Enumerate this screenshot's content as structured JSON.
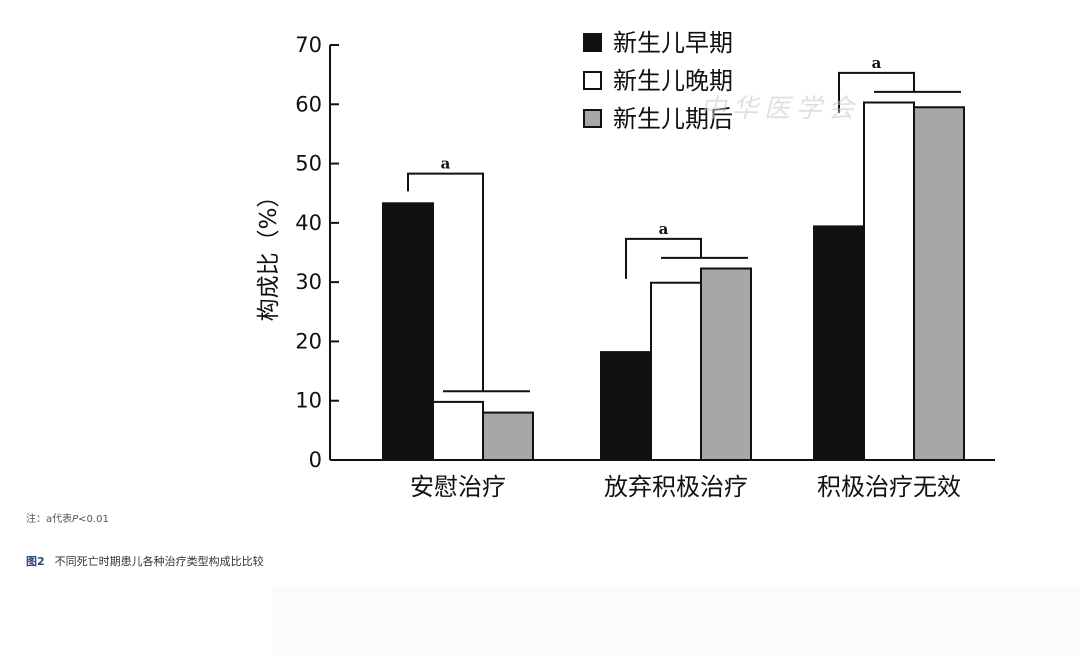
{
  "chart_data": {
    "type": "bar",
    "categories": [
      "安慰治疗",
      "放弃积极治疗",
      "积极治疗无效"
    ],
    "series": [
      {
        "name": "新生儿早期",
        "values": [
          43.3,
          18.2,
          39.4
        ],
        "color": "#111111"
      },
      {
        "name": "新生儿晚期",
        "values": [
          9.8,
          29.9,
          60.3
        ],
        "color": "#ffffff"
      },
      {
        "name": "新生儿期后",
        "values": [
          8.0,
          32.3,
          59.5
        ],
        "color": "#a7a7a7"
      }
    ],
    "ylabel": "构成比（%）",
    "xlabel": "",
    "ylim": [
      0,
      70
    ],
    "yticks": [
      0,
      10,
      20,
      30,
      40,
      50,
      60,
      70
    ],
    "legend_position": "top",
    "annotations": [
      "a",
      "a",
      "a"
    ]
  },
  "note": {
    "prefix": "注：a代表",
    "p": "P",
    "suffix": "<0.01"
  },
  "caption": {
    "number": "图2",
    "text": "不同死亡时期患儿各种治疗类型构成比比较"
  },
  "watermark": "中华医学会"
}
